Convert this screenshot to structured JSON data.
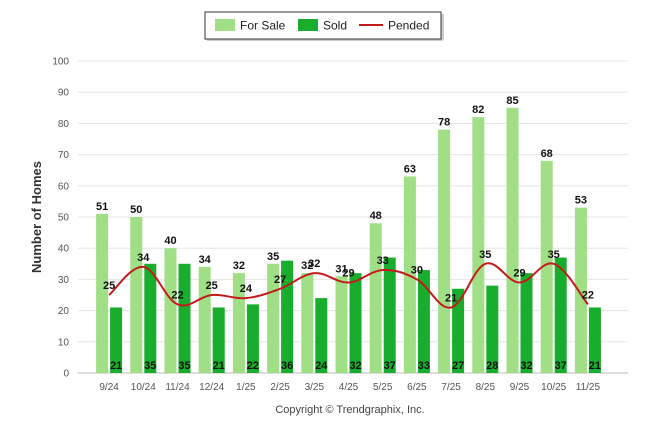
{
  "chart_data": {
    "type": "bar",
    "categories": [
      "9/24",
      "10/24",
      "11/24",
      "12/24",
      "1/25",
      "2/25",
      "3/25",
      "4/25",
      "5/25",
      "6/25",
      "7/25",
      "8/25",
      "9/25",
      "10/25",
      "11/25"
    ],
    "series": [
      {
        "name": "For Sale",
        "type": "bar",
        "color": "#a0df86",
        "values": [
          51,
          50,
          40,
          34,
          32,
          35,
          32,
          31,
          48,
          63,
          78,
          82,
          85,
          68,
          53
        ]
      },
      {
        "name": "Sold",
        "type": "bar",
        "color": "#18ad2c",
        "values": [
          21,
          35,
          35,
          21,
          22,
          36,
          24,
          32,
          37,
          33,
          27,
          28,
          32,
          37,
          21
        ]
      },
      {
        "name": "Pended",
        "type": "line",
        "color": "#c31b1b",
        "values": [
          25,
          34,
          22,
          25,
          24,
          27,
          32,
          29,
          33,
          30,
          21,
          35,
          29,
          35,
          22
        ]
      }
    ],
    "ylabel": "Number of Homes",
    "xlabel": "",
    "ylim": [
      0,
      100
    ],
    "yticks": [
      0,
      10,
      20,
      30,
      40,
      50,
      60,
      70,
      80,
      90,
      100
    ],
    "legend_position": "top-center",
    "grid": true,
    "credit": "Copyright © Trendgraphix, Inc."
  }
}
